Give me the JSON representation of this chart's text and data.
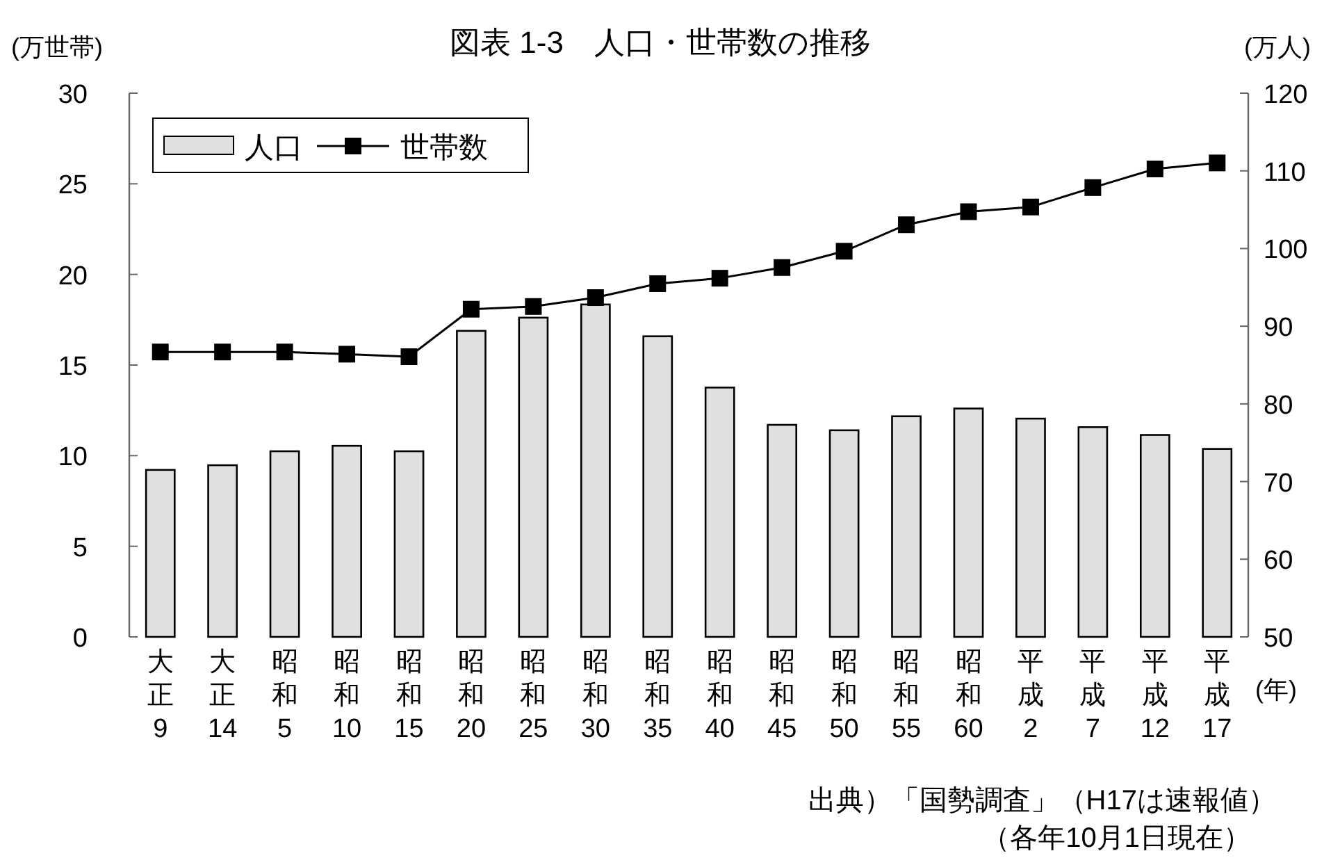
{
  "chart_data": {
    "type": "bar",
    "title": "図表 1-3　人口・世帯数の推移",
    "categories": [
      "大正9",
      "大正14",
      "昭和5",
      "昭和10",
      "昭和15",
      "昭和20",
      "昭和25",
      "昭和30",
      "昭和35",
      "昭和40",
      "昭和45",
      "昭和50",
      "昭和55",
      "昭和60",
      "平成2",
      "平成7",
      "平成12",
      "平成17"
    ],
    "series": [
      {
        "name": "人口",
        "axis": "y2",
        "color": "#e0e0e0",
        "values": [
          71.5,
          72.1,
          73.9,
          74.6,
          73.9,
          89.4,
          91.1,
          92.8,
          88.7,
          82.1,
          77.3,
          76.6,
          78.4,
          79.4,
          78.1,
          77.0,
          76.0,
          74.2
        ]
      },
      {
        "name": "世帯数",
        "type": "line",
        "color": "#000000",
        "marker": "square",
        "values": [
          15.72,
          15.72,
          15.72,
          15.6,
          15.46,
          18.08,
          18.23,
          18.72,
          19.49,
          19.79,
          20.38,
          21.28,
          22.74,
          23.46,
          23.72,
          24.79,
          25.82,
          26.15
        ]
      }
    ],
    "ylabel": "(万世帯)",
    "y2label": "(万人)",
    "xlabel": "(年)",
    "ylim": [
      0,
      30
    ],
    "yticks": [
      0,
      5,
      10,
      15,
      20,
      25,
      30
    ],
    "y2lim": [
      50,
      120
    ],
    "y2ticks": [
      50,
      60,
      70,
      80,
      90,
      100,
      110,
      120
    ],
    "legend": "top left",
    "grid": false,
    "annotations": [
      "出典）「国勢調査」（H17は速報値）",
      "（各年10月1日現在）"
    ]
  }
}
